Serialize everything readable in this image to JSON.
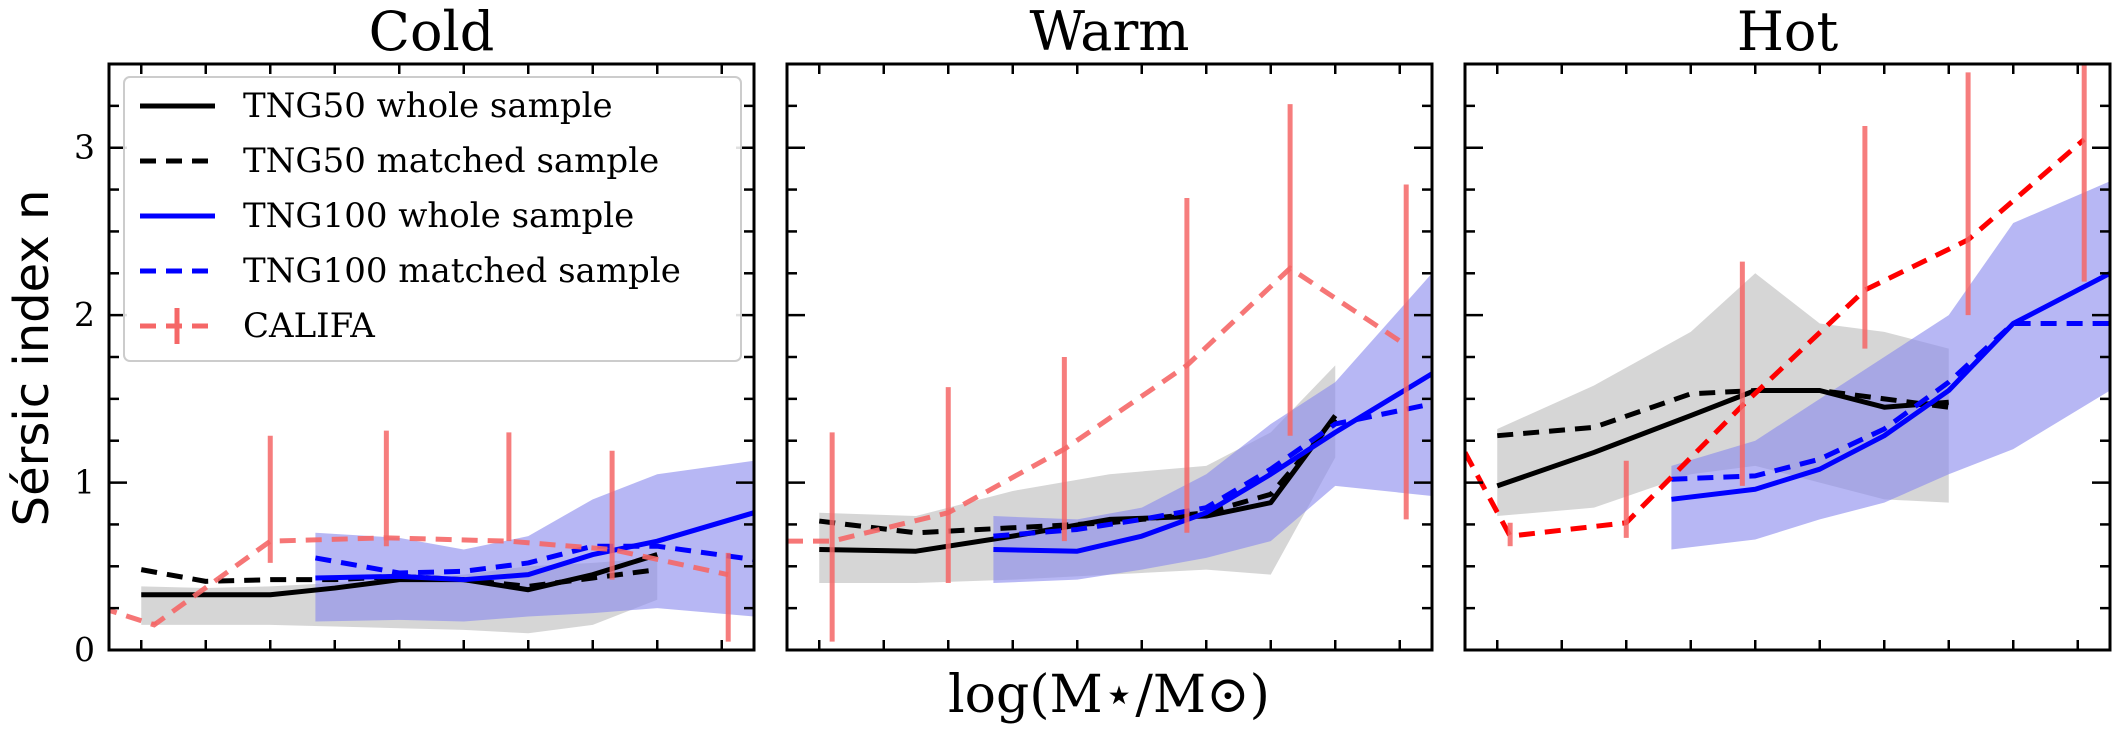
{
  "chart_data": {
    "type": "line",
    "ylabel": "Sérsic index n",
    "xlabel": "log(M⋆/M⊙)",
    "xlim": [
      0,
      10
    ],
    "ylim": [
      0,
      3.5
    ],
    "yticks": [
      0,
      1,
      2,
      3
    ],
    "legend": {
      "placement": "top-left",
      "entries": [
        {
          "label": "TNG50 whole sample",
          "color": "#000000",
          "style": "solid"
        },
        {
          "label": "TNG50 matched sample",
          "color": "#000000",
          "style": "dashed"
        },
        {
          "label": "TNG100 whole sample",
          "color": "#0000ff",
          "style": "solid"
        },
        {
          "label": "TNG100 matched sample",
          "color": "#0000ff",
          "style": "dashed"
        },
        {
          "label": "CALIFA",
          "color": "#f56767",
          "style": "dashed-errorbar"
        }
      ]
    },
    "panels": [
      {
        "title": "Cold",
        "series": [
          {
            "name": "TNG50 whole sample",
            "x": [
              0.5,
              1.5,
              2.5,
              3.5,
              4.5,
              5.5,
              6.5,
              7.5,
              8.5
            ],
            "y": [
              0.33,
              0.33,
              0.33,
              0.37,
              0.42,
              0.42,
              0.36,
              0.45,
              0.57
            ]
          },
          {
            "name": "TNG50 matched sample",
            "x": [
              0.5,
              1.5,
              2.5,
              3.5,
              4.5,
              5.5,
              6.5,
              7.5,
              8.5
            ],
            "y": [
              0.48,
              0.41,
              0.42,
              0.42,
              0.44,
              0.42,
              0.38,
              0.43,
              0.48
            ]
          },
          {
            "name": "TNG100 whole sample",
            "x": [
              3.2,
              4.5,
              5.5,
              6.5,
              7.5,
              8.5,
              10.0
            ],
            "y": [
              0.43,
              0.44,
              0.42,
              0.45,
              0.57,
              0.65,
              0.82
            ]
          },
          {
            "name": "TNG100 matched sample",
            "x": [
              3.2,
              4.5,
              5.5,
              6.5,
              7.5,
              8.5,
              10.0
            ],
            "y": [
              0.55,
              0.46,
              0.47,
              0.52,
              0.62,
              0.62,
              0.54
            ]
          },
          {
            "name": "CALIFA",
            "x": [
              -0.5,
              0.7,
              2.5,
              4.3,
              6.2,
              7.8,
              9.6
            ],
            "y": [
              0.3,
              0.15,
              0.65,
              0.67,
              0.65,
              0.6,
              0.45
            ],
            "err_lo": [
              0.3,
              0.15,
              0.52,
              0.62,
              0.65,
              0.42,
              0.05
            ],
            "err_hi": [
              0.2,
              0.17,
              1.28,
              1.31,
              1.3,
              1.19,
              0.58
            ]
          }
        ],
        "bands": [
          {
            "name": "TNG50 whole sample range",
            "color": "#c8c8c8",
            "x": [
              0.5,
              1.5,
              2.5,
              3.5,
              4.5,
              5.5,
              6.5,
              7.5,
              8.5
            ],
            "lo": [
              0.15,
              0.15,
              0.15,
              0.14,
              0.13,
              0.12,
              0.1,
              0.15,
              0.3
            ],
            "hi": [
              0.38,
              0.37,
              0.38,
              0.4,
              0.42,
              0.45,
              0.5,
              0.52,
              0.55
            ]
          },
          {
            "name": "TNG100 whole sample range",
            "color": "#8a8aee",
            "x": [
              3.2,
              4.5,
              5.5,
              6.5,
              7.5,
              8.5,
              10.0
            ],
            "lo": [
              0.17,
              0.18,
              0.17,
              0.2,
              0.22,
              0.25,
              0.2
            ],
            "hi": [
              0.7,
              0.67,
              0.6,
              0.68,
              0.9,
              1.05,
              1.13
            ]
          }
        ]
      },
      {
        "title": "Warm",
        "series": [
          {
            "name": "TNG50 whole sample",
            "x": [
              0.5,
              2.0,
              3.5,
              5.0,
              6.5,
              7.5,
              8.5
            ],
            "y": [
              0.6,
              0.59,
              0.68,
              0.78,
              0.8,
              0.88,
              1.4
            ]
          },
          {
            "name": "TNG50 matched sample",
            "x": [
              0.5,
              2.0,
              3.5,
              5.0,
              6.5,
              7.5,
              8.5
            ],
            "y": [
              0.77,
              0.7,
              0.73,
              0.76,
              0.82,
              0.93,
              1.38
            ]
          },
          {
            "name": "TNG100 whole sample",
            "x": [
              3.2,
              4.5,
              5.5,
              6.5,
              7.5,
              8.5,
              10.0
            ],
            "y": [
              0.6,
              0.59,
              0.68,
              0.82,
              1.05,
              1.3,
              1.65
            ]
          },
          {
            "name": "TNG100 matched sample",
            "x": [
              3.2,
              4.5,
              5.5,
              6.5,
              7.5,
              8.5,
              10.0
            ],
            "y": [
              0.68,
              0.72,
              0.78,
              0.85,
              1.08,
              1.35,
              1.47
            ]
          },
          {
            "name": "CALIFA",
            "x": [
              0.0,
              0.7,
              2.5,
              4.3,
              6.2,
              7.8,
              9.6
            ],
            "y": [
              0.65,
              0.65,
              0.82,
              1.2,
              1.7,
              2.28,
              1.82
            ],
            "err_lo": [
              0.65,
              0.05,
              0.4,
              0.65,
              0.7,
              1.28,
              0.78
            ],
            "err_hi": [
              0.65,
              1.3,
              1.57,
              1.75,
              2.7,
              3.26,
              2.78
            ]
          }
        ],
        "bands": [
          {
            "name": "TNG50 whole sample range",
            "color": "#c8c8c8",
            "x": [
              0.5,
              2.0,
              3.5,
              5.0,
              6.5,
              7.5,
              8.5
            ],
            "lo": [
              0.4,
              0.4,
              0.42,
              0.45,
              0.48,
              0.45,
              1.15
            ],
            "hi": [
              0.82,
              0.8,
              0.95,
              1.05,
              1.1,
              1.3,
              1.7
            ]
          },
          {
            "name": "TNG100 whole sample range",
            "color": "#8a8aee",
            "x": [
              3.2,
              4.5,
              5.5,
              6.5,
              7.5,
              8.5,
              10.0
            ],
            "lo": [
              0.4,
              0.42,
              0.48,
              0.55,
              0.65,
              0.98,
              0.92
            ],
            "hi": [
              0.8,
              0.78,
              0.85,
              1.05,
              1.35,
              1.6,
              2.25
            ]
          }
        ]
      },
      {
        "title": "Hot",
        "series": [
          {
            "name": "TNG50 whole sample",
            "x": [
              0.5,
              2.0,
              3.5,
              4.5,
              5.5,
              6.5,
              7.5
            ],
            "y": [
              0.98,
              1.18,
              1.4,
              1.55,
              1.55,
              1.45,
              1.48
            ]
          },
          {
            "name": "TNG50 matched sample",
            "x": [
              0.5,
              2.0,
              3.5,
              4.5,
              5.5,
              6.5,
              7.5
            ],
            "y": [
              1.28,
              1.33,
              1.53,
              1.55,
              1.55,
              1.5,
              1.45
            ]
          },
          {
            "name": "TNG100 whole sample",
            "x": [
              3.2,
              4.5,
              5.5,
              6.5,
              7.5,
              8.5,
              10.0
            ],
            "y": [
              0.9,
              0.96,
              1.08,
              1.28,
              1.55,
              1.95,
              2.25
            ]
          },
          {
            "name": "TNG100 matched sample",
            "x": [
              3.2,
              4.5,
              5.5,
              6.5,
              7.5,
              8.5,
              10.0
            ],
            "y": [
              1.02,
              1.04,
              1.14,
              1.32,
              1.6,
              1.95,
              1.95
            ]
          },
          {
            "name": "CALIFA",
            "x": [
              0.0,
              0.7,
              2.5,
              4.3,
              6.2,
              7.8,
              9.6
            ],
            "y": [
              1.18,
              0.68,
              0.76,
              1.46,
              2.15,
              2.45,
              3.05
            ],
            "err_lo": [
              1.18,
              0.62,
              0.67,
              0.98,
              1.8,
              2.0,
              2.2
            ],
            "err_hi": [
              1.18,
              0.76,
              1.13,
              2.32,
              3.13,
              3.45,
              3.6
            ]
          }
        ],
        "bands": [
          {
            "name": "TNG50 whole sample range",
            "color": "#c8c8c8",
            "x": [
              0.5,
              2.0,
              3.5,
              4.5,
              5.5,
              6.5,
              7.5
            ],
            "lo": [
              0.8,
              0.85,
              1.05,
              1.1,
              1.0,
              0.9,
              0.88
            ],
            "hi": [
              1.32,
              1.58,
              1.9,
              2.25,
              1.95,
              1.9,
              1.8
            ]
          },
          {
            "name": "TNG100 whole sample range",
            "color": "#8a8aee",
            "x": [
              3.2,
              4.5,
              5.5,
              6.5,
              7.5,
              8.5,
              10.0
            ],
            "lo": [
              0.6,
              0.66,
              0.78,
              0.88,
              1.05,
              1.2,
              1.55
            ],
            "hi": [
              1.1,
              1.25,
              1.5,
              1.75,
              2.0,
              2.55,
              2.8
            ]
          }
        ]
      }
    ]
  }
}
